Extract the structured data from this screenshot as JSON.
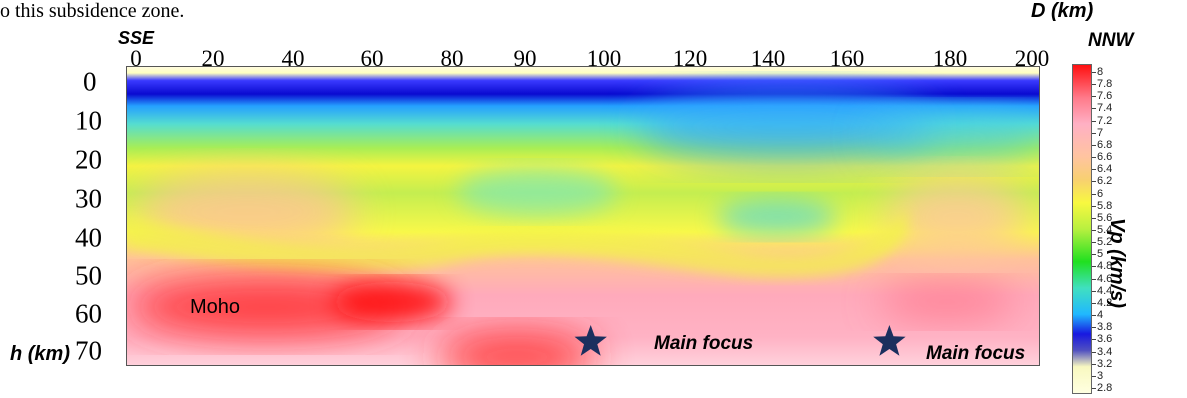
{
  "caption_fragment": "o this subsidence zone.",
  "chart_data": {
    "type": "heatmap",
    "x_axis_title": "D (km)",
    "y_axis_title": "h (km)",
    "left_direction": "SSE",
    "right_direction": "NNW",
    "x_ticks": [
      0,
      20,
      40,
      60,
      80,
      90,
      100,
      120,
      140,
      160,
      180,
      200
    ],
    "y_ticks": [
      0,
      10,
      20,
      30,
      40,
      50,
      60,
      70
    ],
    "xlim": [
      0,
      205
    ],
    "ylim": [
      0,
      72
    ],
    "colorbar_label": "Vp (km/s)",
    "colorbar_ticks": [
      "8",
      "7.8",
      "7.6",
      "7.4",
      "7.2",
      "7",
      "6.8",
      "6.6",
      "6.4",
      "6.2",
      "6",
      "5.8",
      "5.6",
      "5.4",
      "5.2",
      "5",
      "4.8",
      "4.6",
      "4.4",
      "4.2",
      "4",
      "3.8",
      "3.6",
      "3.4",
      "3.2",
      "3",
      "2.8"
    ],
    "colorbar_range": [
      2.8,
      8
    ],
    "annotations": [
      {
        "text": "Moho",
        "x": 14,
        "y": 59
      },
      {
        "text": "Main focus",
        "x": 104,
        "y": 66,
        "marker": "star"
      },
      {
        "text": "Main focus",
        "x": 171,
        "y": 66,
        "marker": "star"
      }
    ],
    "star_color": "#1b2f5e"
  }
}
